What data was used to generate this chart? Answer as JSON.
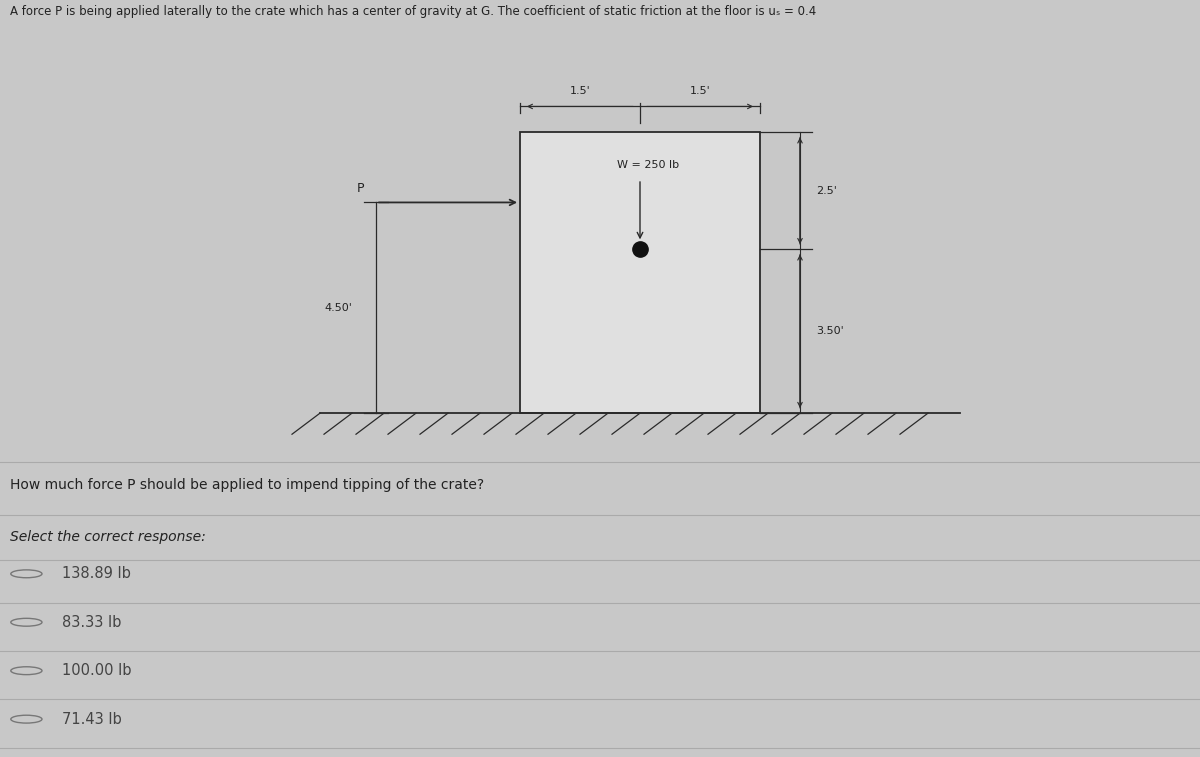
{
  "background_color": "#c8c8c8",
  "title_text": "A force P is being applied laterally to the crate which has a center of gravity at G. The coefficient of static friction at the floor is uₛ = 0.4",
  "question_text": "How much force P should be applied to impend tipping of the crate?",
  "select_text": "Select the correct response:",
  "options": [
    "138.89 lb",
    "83.33 lb",
    "100.00 lb",
    "71.43 lb"
  ],
  "W_label": "W = 250 lb",
  "line_color": "#2a2a2a",
  "crate_fill": "#e8e8e8",
  "circle_color": "#111111",
  "text_color": "#222222",
  "option_text_color": "#444444",
  "divider_color": "#aaaaaa",
  "dim_top_left": "1.5'",
  "dim_top_right": "1.5'",
  "dim_right_top": "2.5'",
  "dim_right_bottom": "3.50'",
  "dim_left_height": "4.50'"
}
